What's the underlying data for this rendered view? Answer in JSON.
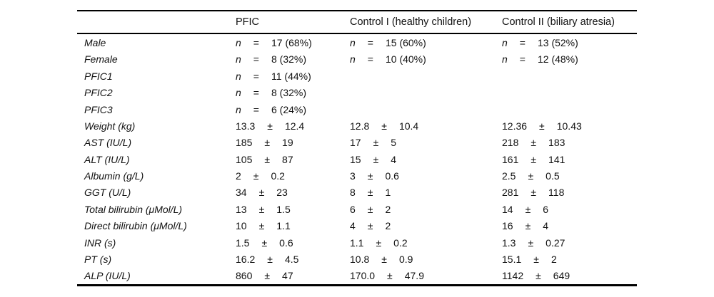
{
  "table": {
    "columns": [
      "",
      "PFIC",
      "Control I (healthy children)",
      "Control II (biliary atresia)"
    ],
    "rows": [
      {
        "label": "Male",
        "cells": [
          [
            "n",
            "=",
            "17 (68%)"
          ],
          [
            "n",
            "=",
            "15 (60%)"
          ],
          [
            "n",
            "=",
            "13 (52%)"
          ]
        ]
      },
      {
        "label": "Female",
        "cells": [
          [
            "n",
            "=",
            "8 (32%)"
          ],
          [
            "n",
            "=",
            "10 (40%)"
          ],
          [
            "n",
            "=",
            "12 (48%)"
          ]
        ]
      },
      {
        "label": "PFIC1",
        "cells": [
          [
            "n",
            "=",
            "11 (44%)"
          ],
          [],
          []
        ]
      },
      {
        "label": "PFIC2",
        "cells": [
          [
            "n",
            "=",
            "8 (32%)"
          ],
          [],
          []
        ]
      },
      {
        "label": "PFIC3",
        "cells": [
          [
            "n",
            "=",
            "6 (24%)"
          ],
          [],
          []
        ]
      },
      {
        "label": "Weight (kg)",
        "cells": [
          [
            "13.3",
            "±",
            "12.4"
          ],
          [
            "12.8",
            "±",
            "10.4"
          ],
          [
            "12.36",
            "±",
            "10.43"
          ]
        ]
      },
      {
        "label": "AST (IU/L)",
        "cells": [
          [
            "185",
            "±",
            "19"
          ],
          [
            "17",
            "±",
            "5"
          ],
          [
            "218",
            "±",
            "183"
          ]
        ]
      },
      {
        "label": "ALT (IU/L)",
        "cells": [
          [
            "105",
            "±",
            "87"
          ],
          [
            "15",
            "±",
            "4"
          ],
          [
            "161",
            "±",
            "141"
          ]
        ]
      },
      {
        "label": "Albumin (g/L)",
        "cells": [
          [
            "2",
            "±",
            "0.2"
          ],
          [
            "3",
            "±",
            "0.6"
          ],
          [
            "2.5",
            "±",
            "0.5"
          ]
        ]
      },
      {
        "label": "GGT (U/L)",
        "cells": [
          [
            "34",
            "±",
            "23"
          ],
          [
            "8",
            "±",
            "1"
          ],
          [
            "281",
            "±",
            "118"
          ]
        ]
      },
      {
        "label": "Total bilirubin (μMol/L)",
        "cells": [
          [
            "13",
            "±",
            "1.5"
          ],
          [
            "6",
            "±",
            "2"
          ],
          [
            "14",
            "±",
            "6"
          ]
        ]
      },
      {
        "label": "Direct bilirubin (μMol/L)",
        "cells": [
          [
            "10",
            "±",
            "1.1"
          ],
          [
            "4",
            "±",
            "2"
          ],
          [
            "16",
            "±",
            "4"
          ]
        ]
      },
      {
        "label": "INR (s)",
        "cells": [
          [
            "1.5",
            "±",
            "0.6"
          ],
          [
            "1.1",
            "±",
            "0.2"
          ],
          [
            "1.3",
            "±",
            "0.27"
          ]
        ]
      },
      {
        "label": "PT (s)",
        "cells": [
          [
            "16.2",
            "±",
            "4.5"
          ],
          [
            "10.8",
            "±",
            "0.9"
          ],
          [
            "15.1",
            "±",
            "2"
          ]
        ]
      },
      {
        "label": "ALP (IU/L)",
        "cells": [
          [
            "860",
            "±",
            "47"
          ],
          [
            "170.0",
            "±",
            "47.9"
          ],
          [
            "1142",
            "±",
            "649"
          ]
        ]
      }
    ],
    "text_color": "#111111",
    "rule_color": "#000000"
  }
}
